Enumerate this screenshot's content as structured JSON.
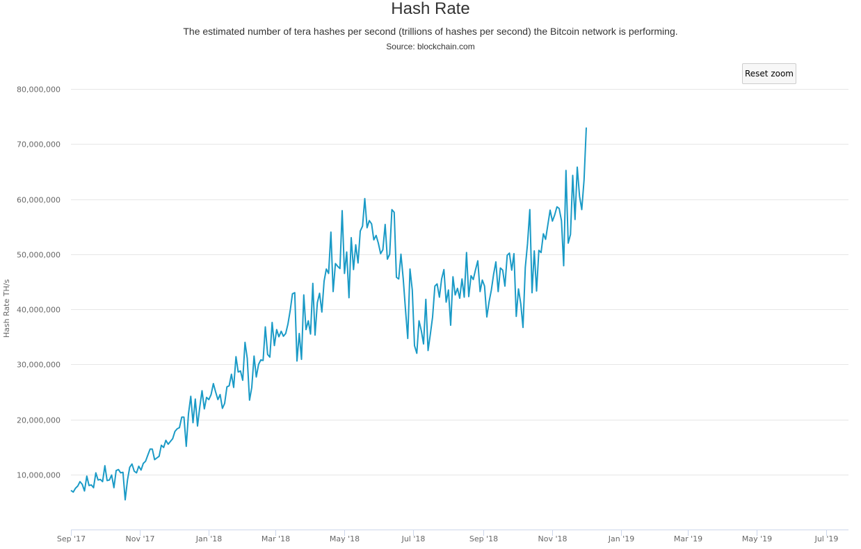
{
  "colors": {
    "line": "#1a9ac6",
    "grid": "#e6e6e6",
    "axis": "#ccd6eb",
    "text": "#666666"
  },
  "reset_zoom_label": "Reset zoom",
  "chart_data": {
    "type": "line",
    "title": "Hash Rate",
    "subtitle": "The estimated number of tera hashes per second (trillions of hashes per second) the Bitcoin network is performing.",
    "source": "Source: blockchain.com",
    "ylabel": "Hash Rate TH/s",
    "xlabel": "",
    "grid": true,
    "ylim": [
      0,
      80000000
    ],
    "y_ticks": [
      10000000,
      20000000,
      30000000,
      40000000,
      50000000,
      60000000,
      70000000,
      80000000
    ],
    "y_tick_labels": [
      "10,000,000",
      "20,000,000",
      "30,000,000",
      "40,000,000",
      "50,000,000",
      "60,000,000",
      "70,000,000",
      "80,000,000"
    ],
    "x_range": [
      "2017-09-01",
      "2019-07-21"
    ],
    "x_ticks": [
      "2017-09-01",
      "2017-11-01",
      "2018-01-01",
      "2018-03-01",
      "2018-05-01",
      "2018-07-01",
      "2018-09-01",
      "2018-11-01",
      "2019-01-01",
      "2019-03-01",
      "2019-05-01",
      "2019-07-01"
    ],
    "x_tick_labels": [
      "Sep '17",
      "Nov '17",
      "Jan '18",
      "Mar '18",
      "May '18",
      "Jul '18",
      "Sep '18",
      "Nov '18",
      "Jan '19",
      "Mar '19",
      "May '19",
      "Jul '19"
    ],
    "series": [
      {
        "values": [
          [
            "2017-09-01",
            7.1
          ],
          [
            "2017-09-03",
            6.8
          ],
          [
            "2017-09-05",
            7.5
          ],
          [
            "2017-09-07",
            7.9
          ],
          [
            "2017-09-09",
            8.7
          ],
          [
            "2017-09-11",
            8.2
          ],
          [
            "2017-09-13",
            7.0
          ],
          [
            "2017-09-15",
            9.7
          ],
          [
            "2017-09-17",
            8.0
          ],
          [
            "2017-09-19",
            8.1
          ],
          [
            "2017-09-21",
            7.6
          ],
          [
            "2017-09-23",
            10.3
          ],
          [
            "2017-09-25",
            9.0
          ],
          [
            "2017-09-27",
            9.1
          ],
          [
            "2017-09-29",
            8.7
          ],
          [
            "2017-10-01",
            11.6
          ],
          [
            "2017-10-03",
            8.9
          ],
          [
            "2017-10-05",
            9.0
          ],
          [
            "2017-10-07",
            9.9
          ],
          [
            "2017-10-09",
            7.6
          ],
          [
            "2017-10-11",
            10.7
          ],
          [
            "2017-10-13",
            10.9
          ],
          [
            "2017-10-15",
            10.3
          ],
          [
            "2017-10-17",
            10.4
          ],
          [
            "2017-10-19",
            5.4
          ],
          [
            "2017-10-21",
            9.0
          ],
          [
            "2017-10-23",
            11.3
          ],
          [
            "2017-10-25",
            11.9
          ],
          [
            "2017-10-27",
            10.6
          ],
          [
            "2017-10-29",
            10.3
          ],
          [
            "2017-10-31",
            11.5
          ],
          [
            "2017-11-02",
            10.8
          ],
          [
            "2017-11-04",
            12.0
          ],
          [
            "2017-11-06",
            12.4
          ],
          [
            "2017-11-08",
            13.5
          ],
          [
            "2017-11-10",
            14.6
          ],
          [
            "2017-11-12",
            14.6
          ],
          [
            "2017-11-14",
            12.7
          ],
          [
            "2017-11-16",
            13.0
          ],
          [
            "2017-11-18",
            13.3
          ],
          [
            "2017-11-20",
            15.3
          ],
          [
            "2017-11-22",
            14.9
          ],
          [
            "2017-11-24",
            16.2
          ],
          [
            "2017-11-26",
            15.5
          ],
          [
            "2017-11-28",
            16.0
          ],
          [
            "2017-11-30",
            16.5
          ],
          [
            "2017-12-02",
            17.8
          ],
          [
            "2017-12-04",
            18.3
          ],
          [
            "2017-12-06",
            18.5
          ],
          [
            "2017-12-08",
            20.4
          ],
          [
            "2017-12-10",
            20.4
          ],
          [
            "2017-12-12",
            15.1
          ],
          [
            "2017-12-14",
            21.0
          ],
          [
            "2017-12-16",
            24.2
          ],
          [
            "2017-12-18",
            19.4
          ],
          [
            "2017-12-20",
            23.7
          ],
          [
            "2017-12-22",
            18.8
          ],
          [
            "2017-12-24",
            22.3
          ],
          [
            "2017-12-26",
            25.2
          ],
          [
            "2017-12-28",
            21.9
          ],
          [
            "2017-12-30",
            24.0
          ],
          [
            "2018-01-01",
            23.6
          ],
          [
            "2018-01-03",
            24.5
          ],
          [
            "2018-01-05",
            26.5
          ],
          [
            "2018-01-07",
            25.0
          ],
          [
            "2018-01-09",
            23.6
          ],
          [
            "2018-01-11",
            24.5
          ],
          [
            "2018-01-13",
            22.0
          ],
          [
            "2018-01-15",
            22.9
          ],
          [
            "2018-01-17",
            25.9
          ],
          [
            "2018-01-19",
            26.1
          ],
          [
            "2018-01-21",
            28.2
          ],
          [
            "2018-01-23",
            25.8
          ],
          [
            "2018-01-25",
            31.4
          ],
          [
            "2018-01-27",
            28.6
          ],
          [
            "2018-01-29",
            28.8
          ],
          [
            "2018-01-31",
            27.1
          ],
          [
            "2018-02-02",
            34.0
          ],
          [
            "2018-02-04",
            31.1
          ],
          [
            "2018-02-06",
            23.5
          ],
          [
            "2018-02-08",
            25.8
          ],
          [
            "2018-02-10",
            31.5
          ],
          [
            "2018-02-12",
            27.7
          ],
          [
            "2018-02-14",
            30.0
          ],
          [
            "2018-02-16",
            30.8
          ],
          [
            "2018-02-18",
            30.7
          ],
          [
            "2018-02-20",
            36.8
          ],
          [
            "2018-02-22",
            31.8
          ],
          [
            "2018-02-24",
            31.3
          ],
          [
            "2018-02-26",
            37.6
          ],
          [
            "2018-02-28",
            33.4
          ],
          [
            "2018-03-02",
            36.3
          ],
          [
            "2018-03-04",
            35.0
          ],
          [
            "2018-03-06",
            36.0
          ],
          [
            "2018-03-08",
            35.1
          ],
          [
            "2018-03-10",
            35.6
          ],
          [
            "2018-03-12",
            37.3
          ],
          [
            "2018-03-14",
            39.8
          ],
          [
            "2018-03-16",
            42.8
          ],
          [
            "2018-03-18",
            43.0
          ],
          [
            "2018-03-20",
            30.6
          ],
          [
            "2018-03-22",
            35.6
          ],
          [
            "2018-03-24",
            30.9
          ],
          [
            "2018-03-26",
            42.6
          ],
          [
            "2018-03-28",
            36.3
          ],
          [
            "2018-03-30",
            37.9
          ],
          [
            "2018-04-01",
            35.5
          ],
          [
            "2018-04-03",
            44.7
          ],
          [
            "2018-04-05",
            35.3
          ],
          [
            "2018-04-07",
            41.2
          ],
          [
            "2018-04-09",
            42.9
          ],
          [
            "2018-04-11",
            39.5
          ],
          [
            "2018-04-13",
            45.1
          ],
          [
            "2018-04-15",
            47.3
          ],
          [
            "2018-04-17",
            46.5
          ],
          [
            "2018-04-19",
            54.0
          ],
          [
            "2018-04-21",
            43.2
          ],
          [
            "2018-04-23",
            48.3
          ],
          [
            "2018-04-25",
            47.8
          ],
          [
            "2018-04-27",
            47.4
          ],
          [
            "2018-04-29",
            57.9
          ],
          [
            "2018-05-01",
            46.5
          ],
          [
            "2018-05-03",
            50.4
          ],
          [
            "2018-05-05",
            42.1
          ],
          [
            "2018-05-07",
            53.0
          ],
          [
            "2018-05-09",
            47.2
          ],
          [
            "2018-05-11",
            51.7
          ],
          [
            "2018-05-13",
            48.4
          ],
          [
            "2018-05-15",
            54.2
          ],
          [
            "2018-05-17",
            55.1
          ],
          [
            "2018-05-19",
            60.1
          ],
          [
            "2018-05-21",
            54.8
          ],
          [
            "2018-05-23",
            56.1
          ],
          [
            "2018-05-25",
            55.5
          ],
          [
            "2018-05-27",
            52.6
          ],
          [
            "2018-05-29",
            53.4
          ],
          [
            "2018-05-31",
            52.0
          ],
          [
            "2018-06-02",
            50.1
          ],
          [
            "2018-06-04",
            50.8
          ],
          [
            "2018-06-06",
            55.4
          ],
          [
            "2018-06-08",
            49.1
          ],
          [
            "2018-06-10",
            50.0
          ],
          [
            "2018-06-12",
            58.1
          ],
          [
            "2018-06-14",
            57.6
          ],
          [
            "2018-06-16",
            45.8
          ],
          [
            "2018-06-18",
            45.5
          ],
          [
            "2018-06-20",
            50.0
          ],
          [
            "2018-06-22",
            45.5
          ],
          [
            "2018-06-24",
            40.0
          ],
          [
            "2018-06-26",
            34.7
          ],
          [
            "2018-06-28",
            47.3
          ],
          [
            "2018-06-30",
            43.5
          ],
          [
            "2018-07-02",
            33.4
          ],
          [
            "2018-07-04",
            32.0
          ],
          [
            "2018-07-06",
            37.9
          ],
          [
            "2018-07-08",
            36.1
          ],
          [
            "2018-07-10",
            33.7
          ],
          [
            "2018-07-12",
            41.8
          ],
          [
            "2018-07-14",
            32.5
          ],
          [
            "2018-07-16",
            35.5
          ],
          [
            "2018-07-18",
            38.6
          ],
          [
            "2018-07-20",
            44.2
          ],
          [
            "2018-07-22",
            44.6
          ],
          [
            "2018-07-24",
            42.2
          ],
          [
            "2018-07-26",
            45.5
          ],
          [
            "2018-07-28",
            47.2
          ],
          [
            "2018-07-30",
            41.3
          ],
          [
            "2018-08-01",
            43.5
          ],
          [
            "2018-08-03",
            37.1
          ],
          [
            "2018-08-05",
            45.9
          ],
          [
            "2018-08-07",
            42.6
          ],
          [
            "2018-08-09",
            43.8
          ],
          [
            "2018-08-11",
            42.0
          ],
          [
            "2018-08-13",
            45.5
          ],
          [
            "2018-08-15",
            42.2
          ],
          [
            "2018-08-17",
            50.3
          ],
          [
            "2018-08-19",
            42.3
          ],
          [
            "2018-08-21",
            46.1
          ],
          [
            "2018-08-23",
            45.4
          ],
          [
            "2018-08-25",
            47.2
          ],
          [
            "2018-08-27",
            48.8
          ],
          [
            "2018-08-29",
            43.2
          ],
          [
            "2018-08-31",
            45.3
          ],
          [
            "2018-09-02",
            44.2
          ],
          [
            "2018-09-04",
            38.6
          ],
          [
            "2018-09-06",
            41.4
          ],
          [
            "2018-09-08",
            43.5
          ],
          [
            "2018-09-10",
            46.4
          ],
          [
            "2018-09-12",
            48.6
          ],
          [
            "2018-09-14",
            43.2
          ],
          [
            "2018-09-16",
            47.5
          ],
          [
            "2018-09-18",
            47.1
          ],
          [
            "2018-09-20",
            44.2
          ],
          [
            "2018-09-22",
            49.8
          ],
          [
            "2018-09-24",
            50.2
          ],
          [
            "2018-09-26",
            47.1
          ],
          [
            "2018-09-28",
            50.1
          ],
          [
            "2018-09-30",
            38.7
          ],
          [
            "2018-10-02",
            43.7
          ],
          [
            "2018-10-04",
            41.0
          ],
          [
            "2018-10-06",
            36.7
          ],
          [
            "2018-10-08",
            47.6
          ],
          [
            "2018-10-10",
            51.9
          ],
          [
            "2018-10-12",
            58.1
          ],
          [
            "2018-10-14",
            43.0
          ],
          [
            "2018-10-16",
            50.6
          ],
          [
            "2018-10-18",
            43.3
          ],
          [
            "2018-10-20",
            50.7
          ],
          [
            "2018-10-22",
            50.3
          ],
          [
            "2018-10-24",
            53.7
          ],
          [
            "2018-10-26",
            52.7
          ],
          [
            "2018-10-28",
            55.4
          ],
          [
            "2018-10-30",
            58.0
          ],
          [
            "2018-11-01",
            56.0
          ],
          [
            "2018-11-03",
            57.1
          ],
          [
            "2018-11-05",
            58.6
          ],
          [
            "2018-11-07",
            58.3
          ],
          [
            "2018-11-09",
            56.1
          ],
          [
            "2018-11-11",
            47.9
          ],
          [
            "2018-11-13",
            65.2
          ],
          [
            "2018-11-15",
            52.0
          ],
          [
            "2018-11-17",
            53.6
          ],
          [
            "2018-11-19",
            64.3
          ],
          [
            "2018-11-21",
            56.3
          ],
          [
            "2018-11-23",
            65.8
          ],
          [
            "2018-11-25",
            60.5
          ],
          [
            "2018-11-27",
            58.1
          ],
          [
            "2018-11-29",
            63.5
          ],
          [
            "2018-12-01",
            73.0
          ]
        ]
      }
    ]
  }
}
